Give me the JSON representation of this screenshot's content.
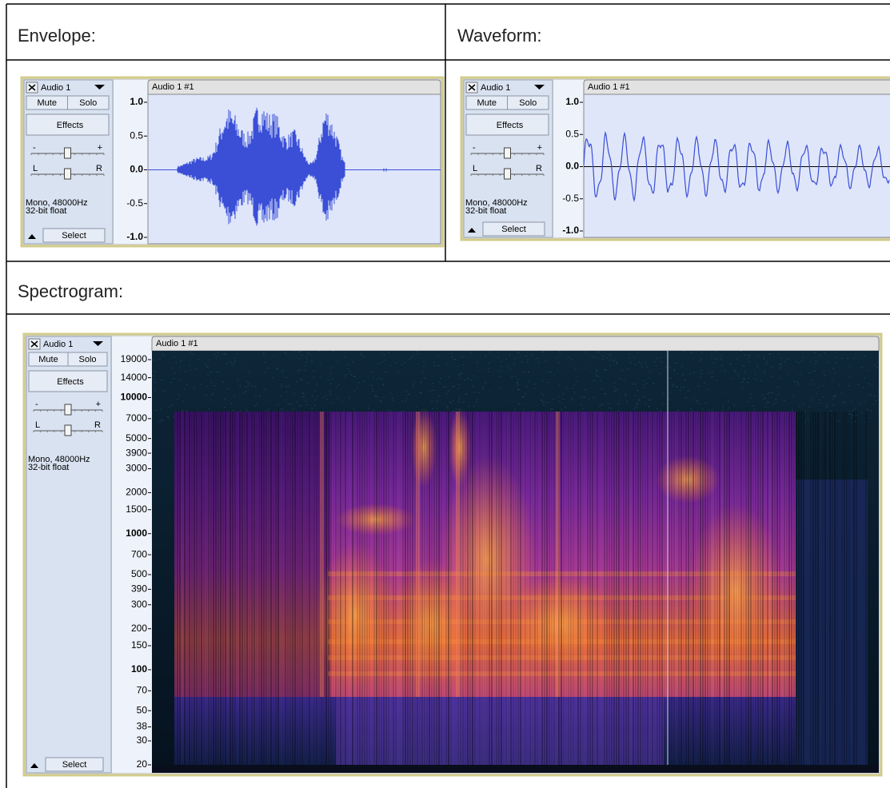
{
  "sections": [
    {
      "heading": "Envelope:",
      "track": {
        "name": "Audio 1",
        "mute": "Mute",
        "solo": "Solo",
        "effects": "Effects",
        "gain_minus": "-",
        "gain_plus": "+",
        "pan_left": "L",
        "pan_right": "R",
        "format": "Mono, 48000Hz",
        "sample": "32-bit float",
        "select": "Select",
        "clip": "Audio 1 #1"
      },
      "scale": [
        {
          "value": 1,
          "label": "1.0"
        },
        0.5,
        {
          "value": 0,
          "label": "0.0"
        },
        -0.5,
        {
          "value": -1,
          "label": "-1.0"
        }
      ]
    },
    {
      "heading": "Waveform:",
      "track": {
        "name": "Audio 1",
        "mute": "Mute",
        "solo": "Solo",
        "effects": "Effects",
        "gain_minus": "-",
        "gain_plus": "+",
        "pan_left": "L",
        "pan_right": "R",
        "format": "Mono, 48000Hz",
        "sample": "32-bit float",
        "select": "Select",
        "clip": "Audio 1 #1"
      },
      "scale": [
        {
          "value": 1,
          "label": "1.0"
        },
        0.5,
        {
          "value": 0,
          "label": "0.0"
        },
        -0.5,
        {
          "value": -1,
          "label": "-1.0"
        }
      ]
    },
    {
      "heading": "Spectrogram:",
      "track": {
        "name": "Audio 1",
        "mute": "Mute",
        "solo": "Solo",
        "effects": "Effects",
        "gain_minus": "-",
        "gain_plus": "+",
        "pan_left": "L",
        "pan_right": "R",
        "format": "Mono, 48000Hz",
        "sample": "32-bit float",
        "select": "Select",
        "clip": "Audio 1 #1"
      },
      "scale": [
        19000,
        14000,
        10000,
        7000,
        5000,
        3900,
        3000,
        2000,
        1500,
        1000,
        700,
        500,
        390,
        300,
        200,
        150,
        100,
        70,
        50,
        38,
        30,
        20
      ]
    }
  ]
}
